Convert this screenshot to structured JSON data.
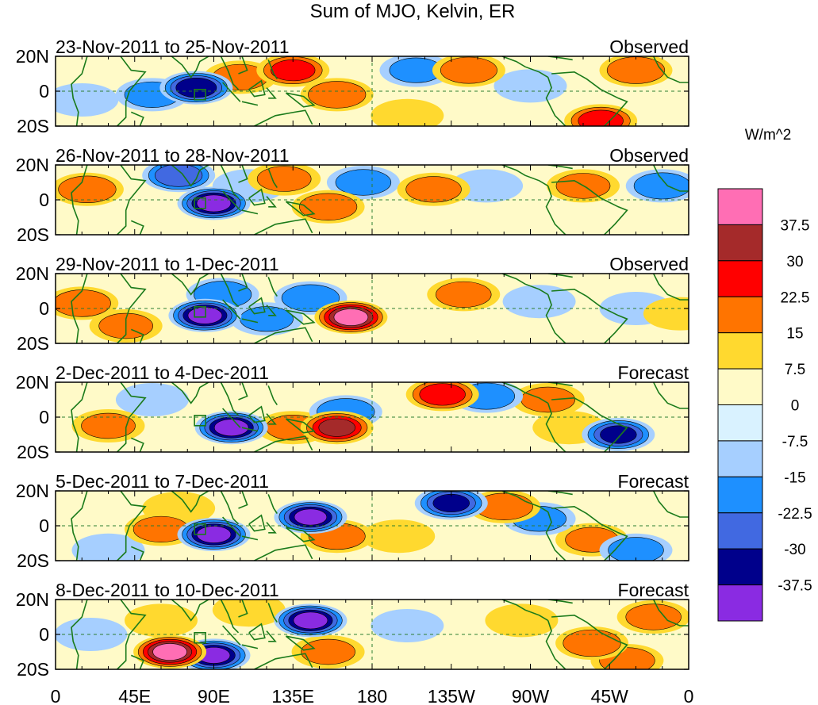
{
  "chart_data": {
    "type": "heatmap",
    "title": "Sum of MJO, Kelvin, ER",
    "units": "W/m^2",
    "x_ticks": [
      "0",
      "45E",
      "90E",
      "135E",
      "180",
      "135W",
      "90W",
      "45W",
      "0"
    ],
    "y_ticks": [
      "20N",
      "0",
      "20S"
    ],
    "xlim": [
      0,
      360
    ],
    "ylim": [
      -20,
      20
    ],
    "colorbar": {
      "labels": [
        "37.5",
        "30",
        "22.5",
        "15",
        "7.5",
        "0",
        "-7.5",
        "-15",
        "-22.5",
        "-30",
        "-37.5"
      ],
      "colors": [
        "#ff6eb4",
        "#a52a2a",
        "#ff0000",
        "#ff7400",
        "#ffd92f",
        "#fffac8",
        "#d9f2ff",
        "#a6cfff",
        "#1e90ff",
        "#4169e1",
        "#00008b",
        "#8a2be2"
      ]
    },
    "panels": [
      {
        "period": "23-Nov-2011 to 25-Nov-2011",
        "kind": "Observed",
        "anomalies": [
          {
            "lon": 80,
            "lat": 2,
            "value": -35
          },
          {
            "lon": 55,
            "lat": -2,
            "value": -18
          },
          {
            "lon": 15,
            "lat": -5,
            "value": -12
          },
          {
            "lon": 105,
            "lat": 8,
            "value": 18
          },
          {
            "lon": 135,
            "lat": 12,
            "value": 24
          },
          {
            "lon": 160,
            "lat": -2,
            "value": 22
          },
          {
            "lon": 205,
            "lat": 12,
            "value": -15
          },
          {
            "lon": 235,
            "lat": 12,
            "value": 20
          },
          {
            "lon": 270,
            "lat": 3,
            "value": -10
          },
          {
            "lon": 330,
            "lat": 12,
            "value": 22
          },
          {
            "lon": 310,
            "lat": -17,
            "value": 25
          },
          {
            "lon": 200,
            "lat": -14,
            "value": 10
          }
        ]
      },
      {
        "period": "26-Nov-2011 to 28-Nov-2011",
        "kind": "Observed",
        "anomalies": [
          {
            "lon": 90,
            "lat": -2,
            "value": -40
          },
          {
            "lon": 70,
            "lat": 14,
            "value": -28
          },
          {
            "lon": 18,
            "lat": 6,
            "value": 22
          },
          {
            "lon": 130,
            "lat": 12,
            "value": 16
          },
          {
            "lon": 155,
            "lat": -4,
            "value": 22
          },
          {
            "lon": 175,
            "lat": 10,
            "value": -18
          },
          {
            "lon": 215,
            "lat": 6,
            "value": 18
          },
          {
            "lon": 245,
            "lat": 8,
            "value": -12
          },
          {
            "lon": 300,
            "lat": 8,
            "value": 16
          },
          {
            "lon": 345,
            "lat": 8,
            "value": -20
          },
          {
            "lon": 110,
            "lat": 8,
            "value": -14
          }
        ]
      },
      {
        "period": "29-Nov-2011 to 1-Dec-2011",
        "kind": "Observed",
        "anomalies": [
          {
            "lon": 85,
            "lat": -4,
            "value": -40
          },
          {
            "lon": 95,
            "lat": 8,
            "value": -22
          },
          {
            "lon": 15,
            "lat": 3,
            "value": 22
          },
          {
            "lon": 40,
            "lat": -10,
            "value": 16
          },
          {
            "lon": 168,
            "lat": -5,
            "value": 40
          },
          {
            "lon": 145,
            "lat": 6,
            "value": -22
          },
          {
            "lon": 120,
            "lat": -6,
            "value": -15
          },
          {
            "lon": 232,
            "lat": 8,
            "value": 18
          },
          {
            "lon": 275,
            "lat": 4,
            "value": -12
          },
          {
            "lon": 330,
            "lat": 0,
            "value": -10
          },
          {
            "lon": 355,
            "lat": -3,
            "value": 14
          }
        ]
      },
      {
        "period": "2-Dec-2011 to 4-Dec-2011",
        "kind": "Forecast",
        "anomalies": [
          {
            "lon": 100,
            "lat": -6,
            "value": -40
          },
          {
            "lon": 30,
            "lat": -5,
            "value": 16
          },
          {
            "lon": 55,
            "lat": 10,
            "value": -12
          },
          {
            "lon": 160,
            "lat": -6,
            "value": 30
          },
          {
            "lon": 135,
            "lat": -6,
            "value": 16
          },
          {
            "lon": 165,
            "lat": 3,
            "value": -22
          },
          {
            "lon": 220,
            "lat": 13,
            "value": 26
          },
          {
            "lon": 245,
            "lat": 12,
            "value": -20
          },
          {
            "lon": 280,
            "lat": 10,
            "value": 16
          },
          {
            "lon": 320,
            "lat": -10,
            "value": -30
          },
          {
            "lon": 292,
            "lat": -6,
            "value": 14
          }
        ]
      },
      {
        "period": "5-Dec-2011 to 7-Dec-2011",
        "kind": "Forecast",
        "anomalies": [
          {
            "lon": 90,
            "lat": -5,
            "value": -40
          },
          {
            "lon": 145,
            "lat": 5,
            "value": -38
          },
          {
            "lon": 60,
            "lat": -2,
            "value": 18
          },
          {
            "lon": 70,
            "lat": 10,
            "value": 14
          },
          {
            "lon": 160,
            "lat": -6,
            "value": 20
          },
          {
            "lon": 195,
            "lat": -6,
            "value": 12
          },
          {
            "lon": 225,
            "lat": 13,
            "value": -30
          },
          {
            "lon": 255,
            "lat": 11,
            "value": 22
          },
          {
            "lon": 275,
            "lat": 4,
            "value": -16
          },
          {
            "lon": 305,
            "lat": -8,
            "value": 15
          },
          {
            "lon": 330,
            "lat": -14,
            "value": -18
          },
          {
            "lon": 30,
            "lat": -14,
            "value": -12
          }
        ]
      },
      {
        "period": "8-Dec-2011 to 10-Dec-2011",
        "kind": "Forecast",
        "anomalies": [
          {
            "lon": 65,
            "lat": -10,
            "value": 40
          },
          {
            "lon": 90,
            "lat": -12,
            "value": -38
          },
          {
            "lon": 145,
            "lat": 8,
            "value": -40
          },
          {
            "lon": 110,
            "lat": 14,
            "value": 14
          },
          {
            "lon": 60,
            "lat": 8,
            "value": 12
          },
          {
            "lon": 155,
            "lat": -10,
            "value": 16
          },
          {
            "lon": 200,
            "lat": 5,
            "value": -12
          },
          {
            "lon": 265,
            "lat": 8,
            "value": 10
          },
          {
            "lon": 305,
            "lat": -5,
            "value": 22
          },
          {
            "lon": 340,
            "lat": 10,
            "value": 18
          },
          {
            "lon": 325,
            "lat": -15,
            "value": 18
          },
          {
            "lon": 20,
            "lat": 0,
            "value": -10
          }
        ]
      }
    ]
  }
}
